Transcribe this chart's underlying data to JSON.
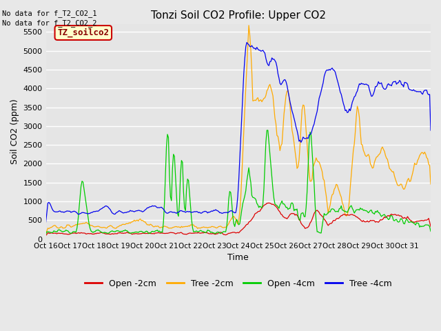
{
  "title": "Tonzi Soil CO2 Profile: Upper CO2",
  "xlabel": "Time",
  "ylabel": "Soil CO2 (ppm)",
  "ylim": [
    0,
    5700
  ],
  "yticks": [
    0,
    500,
    1000,
    1500,
    2000,
    2500,
    3000,
    3500,
    4000,
    4500,
    5000,
    5500
  ],
  "background_color": "#e8e8e8",
  "plot_bg_color": "#e5e5e5",
  "no_data_text1": "No data for f_T2_CO2_1",
  "no_data_text2": "No data for f_T2_CO2_2",
  "legend_box_label": "TZ_soilco2",
  "legend_box_color": "#ffffcc",
  "legend_box_text_color": "#880000",
  "legend_box_border_color": "#cc0000",
  "x_tick_labels": [
    "Oct 16",
    "Oct 17",
    "Oct 18",
    "Oct 19",
    "Oct 20",
    "Oct 21",
    "Oct 22",
    "Oct 23",
    "Oct 24",
    "Oct 25",
    "Oct 26",
    "Oct 27",
    "Oct 28",
    "Oct 29",
    "Oct 30",
    "Oct 31"
  ],
  "line_colors": {
    "open_2cm": "#dd0000",
    "tree_2cm": "#ffaa00",
    "open_4cm": "#00cc00",
    "tree_4cm": "#0000ee"
  },
  "legend_labels": [
    "Open -2cm",
    "Tree -2cm",
    "Open -4cm",
    "Tree -4cm"
  ]
}
